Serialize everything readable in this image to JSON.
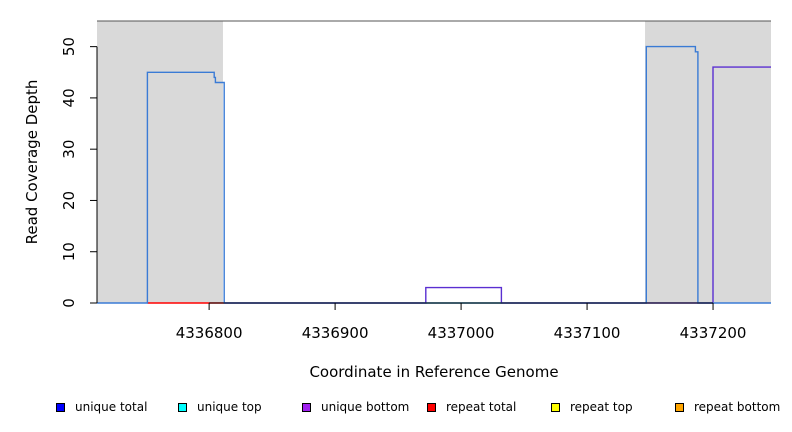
{
  "chart_data": {
    "type": "line",
    "title": "",
    "xlabel": "Coordinate in Reference Genome",
    "ylabel": "Read Coverage Depth",
    "xlim": [
      4336711,
      4337246
    ],
    "ylim": [
      0,
      55
    ],
    "x_ticks": [
      4336800,
      4336900,
      4337000,
      4337100,
      4337200
    ],
    "y_ticks": [
      0,
      10,
      20,
      30,
      40,
      50
    ],
    "grid": false,
    "shaded_regions": [
      {
        "x0": 4336711,
        "x1": 4336811
      },
      {
        "x0": 4337146,
        "x1": 4337246
      }
    ],
    "series": [
      {
        "name": "unique total",
        "color": "#3a7bd5",
        "x": [
          4336711,
          4336751,
          4336751,
          4336804,
          4336804,
          4336805,
          4336805,
          4336812,
          4336812,
          4337147,
          4337147,
          4337186,
          4337186,
          4337188,
          4337188,
          4337246
        ],
        "y": [
          0,
          0,
          45,
          45,
          44,
          44,
          43,
          43,
          0,
          0,
          50,
          50,
          49,
          49,
          0,
          0
        ]
      },
      {
        "name": "unique bottom",
        "color": "#5a2fd1",
        "x": [
          4336812,
          4336972,
          4336972,
          4337032,
          4337032,
          4337200,
          4337200,
          4337246
        ],
        "y": [
          0,
          0,
          3,
          3,
          0,
          0,
          46,
          46
        ]
      },
      {
        "name": "repeat total",
        "color": "#ff0000",
        "x": [
          4336751,
          4336812
        ],
        "y": [
          0,
          0
        ]
      },
      {
        "name": "unique top",
        "color": "#7fe0a0",
        "x": [
          4336972,
          4337032
        ],
        "y": [
          0,
          0
        ]
      }
    ]
  },
  "legend": [
    {
      "label": "unique total",
      "color": "#0000ff"
    },
    {
      "label": "unique top",
      "color": "#00ffff"
    },
    {
      "label": "unique bottom",
      "color": "#a020f0"
    },
    {
      "label": "repeat total",
      "color": "#ff0000"
    },
    {
      "label": "repeat top",
      "color": "#ffff00"
    },
    {
      "label": "repeat bottom",
      "color": "#ffa500"
    }
  ]
}
